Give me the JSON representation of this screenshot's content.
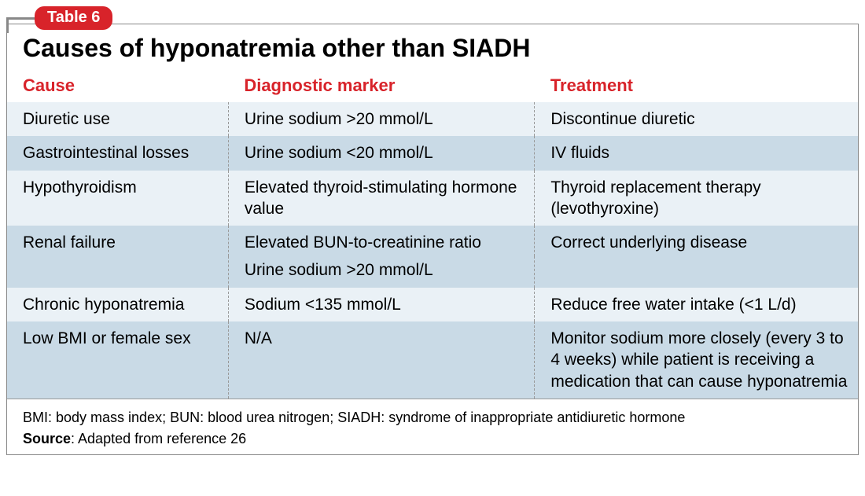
{
  "badge": "Table 6",
  "title": "Causes of hyponatremia other than SIADH",
  "columns": [
    "Cause",
    "Diagnostic marker",
    "Treatment"
  ],
  "rows": [
    {
      "shade": "light",
      "cells": [
        "Diuretic use",
        "Urine sodium >20 mmol/L",
        "Discontinue diuretic"
      ]
    },
    {
      "shade": "dark",
      "cells": [
        "Gastrointestinal losses",
        "Urine sodium <20 mmol/L",
        "IV fluids"
      ]
    },
    {
      "shade": "light",
      "cells": [
        "Hypothyroidism",
        "Elevated thyroid-stimulating hormone value",
        "Thyroid replacement therapy (levothyroxine)"
      ]
    },
    {
      "shade": "dark",
      "cells": [
        "Renal failure",
        "Elevated BUN-to-creatinine ratio\nUrine sodium >20 mmol/L",
        "Correct underlying disease"
      ]
    },
    {
      "shade": "light",
      "cells": [
        "Chronic hyponatremia",
        "Sodium <135 mmol/L",
        "Reduce free water intake (<1 L/d)"
      ]
    },
    {
      "shade": "dark",
      "cells": [
        "Low BMI or female sex",
        "N/A",
        "Monitor sodium more closely (every 3 to 4 weeks) while patient is receiving a medication that can cause hyponatremia"
      ]
    }
  ],
  "footer_abbrev": "BMI: body mass index; BUN: blood urea nitrogen; SIADH: syndrome of inappropriate antidiuretic hormone",
  "footer_source_label": "Source",
  "footer_source_text": ": Adapted from reference 26",
  "colors": {
    "accent_red": "#d8232a",
    "row_light": "#eaf1f6",
    "row_dark": "#c9dae6",
    "border": "#888888"
  }
}
